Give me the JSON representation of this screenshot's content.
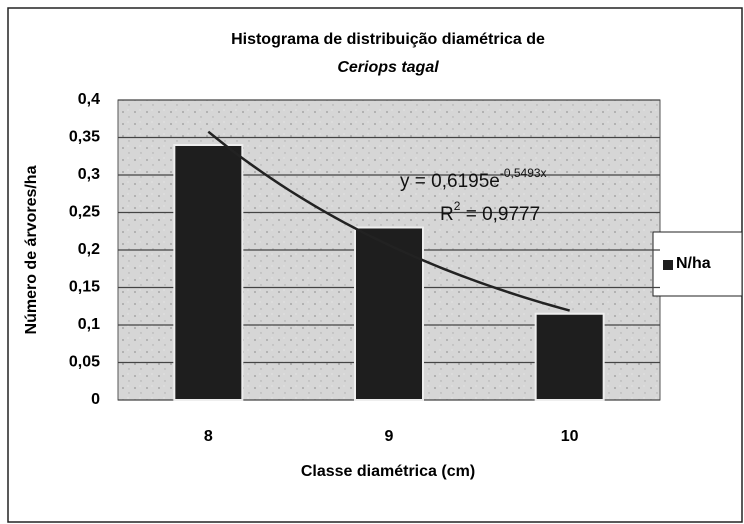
{
  "chart_data": {
    "type": "bar",
    "title": "Histograma de distribuição diamétrica de",
    "subtitle": "Ceriops tagal",
    "y_label": "Número de árvores/ha",
    "x_label": "Classe diamétrica (cm)",
    "categories": [
      "8",
      "9",
      "10"
    ],
    "series": [
      {
        "name": "N/ha",
        "color": "#1e1e1e",
        "values": [
          0.34,
          0.23,
          0.115
        ]
      }
    ],
    "ylim": [
      0,
      0.4
    ],
    "yticks": [
      0,
      {
        "value": 0.05,
        "label": "0,05"
      },
      {
        "value": 0.1,
        "label": "0,1"
      },
      {
        "value": 0.15,
        "label": "0,15"
      },
      {
        "value": 0.2,
        "label": "0,2"
      },
      {
        "value": 0.25,
        "label": "0,25"
      },
      {
        "value": 0.3,
        "label": "0,3"
      },
      {
        "value": 0.35,
        "label": "0,35"
      },
      {
        "value": 0.4,
        "label": "0,4"
      }
    ],
    "grid": true,
    "legend": "right",
    "trendline": {
      "a": 0.6195,
      "b": -0.5493,
      "color": "#222",
      "equation": "y = 0,6195e",
      "exponent": "-0,5493x",
      "r2_base": "R",
      "r2_power": "2",
      "r2_value": " = 0,9777"
    }
  }
}
